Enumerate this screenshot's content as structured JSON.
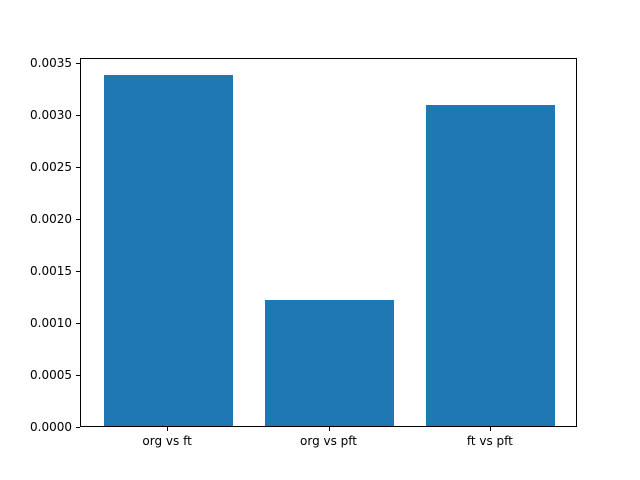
{
  "chart_data": {
    "type": "bar",
    "categories": [
      "org vs ft",
      "org vs pft",
      "ft vs pft"
    ],
    "values": [
      0.00338,
      0.00121,
      0.00309
    ],
    "title": "",
    "xlabel": "",
    "ylabel": "",
    "ylim": [
      0.0,
      0.003549
    ],
    "yticks": [
      0.0,
      0.0005,
      0.001,
      0.0015,
      0.002,
      0.0025,
      0.003,
      0.0035
    ],
    "ytick_format_decimals": 4,
    "bar_color": "#1f77b4",
    "axes_color": "#000000",
    "background_color": "#ffffff",
    "grid": false,
    "legend": null
  }
}
